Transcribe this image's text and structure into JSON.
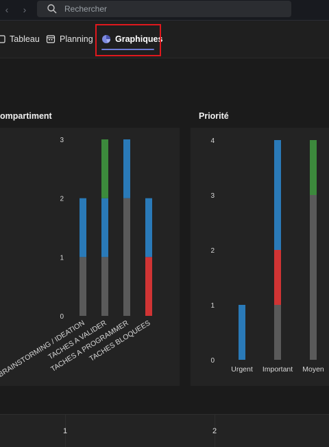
{
  "nav": {
    "back_icon": "chevron-left-icon",
    "forward_icon": "chevron-right-icon"
  },
  "search": {
    "placeholder": "Rechercher"
  },
  "tabs": [
    {
      "label": "Tableau",
      "icon": "board-icon"
    },
    {
      "label": "Planning",
      "icon": "calendar-icon"
    },
    {
      "label": "Graphiques",
      "icon": "pie-chart-icon",
      "active": true
    }
  ],
  "colors": {
    "gray": "#5a5a5a",
    "blue": "#2a7ab8",
    "green": "#3c8a3c",
    "red": "#d03434",
    "highlight": "#e0181d",
    "underline": "#6f7cd6"
  },
  "sections": {
    "compartiment_title": "ompartiment",
    "priorite_title": "Priorité"
  },
  "chart_data": [
    {
      "type": "bar",
      "stacked": true,
      "title": "ompartiment",
      "categories": [
        "BRAINSTORMING / IDEATION",
        "TACHES A VALIDER",
        "TACHES A PROGRAMMER",
        "TACHES BLOQUEES"
      ],
      "series": [
        {
          "color": "#5a5a5a",
          "values": [
            1,
            1,
            2,
            0
          ]
        },
        {
          "color": "#d03434",
          "values": [
            0,
            0,
            0,
            1
          ]
        },
        {
          "color": "#2a7ab8",
          "values": [
            1,
            1,
            1,
            1
          ]
        },
        {
          "color": "#3c8a3c",
          "values": [
            0,
            1,
            0,
            0
          ]
        }
      ],
      "yticks": [
        "0",
        "1",
        "2",
        "3"
      ],
      "ylim": [
        0,
        3
      ]
    },
    {
      "type": "bar",
      "stacked": true,
      "title": "Priorité",
      "categories": [
        "Urgent",
        "Important",
        "Moyen"
      ],
      "series": [
        {
          "color": "#5a5a5a",
          "values": [
            0,
            1,
            3
          ]
        },
        {
          "color": "#d03434",
          "values": [
            0,
            1,
            0
          ]
        },
        {
          "color": "#2a7ab8",
          "values": [
            1,
            2,
            0
          ]
        },
        {
          "color": "#3c8a3c",
          "values": [
            0,
            0,
            1
          ]
        }
      ],
      "yticks": [
        "0",
        "1",
        "2",
        "3",
        "4"
      ],
      "ylim": [
        0,
        4
      ]
    }
  ],
  "table_row": {
    "col1": "1",
    "col2": "2"
  }
}
